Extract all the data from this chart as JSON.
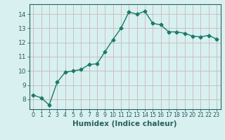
{
  "x": [
    0,
    1,
    2,
    3,
    4,
    5,
    6,
    7,
    8,
    9,
    10,
    11,
    12,
    13,
    14,
    15,
    16,
    17,
    18,
    19,
    20,
    21,
    22,
    23
  ],
  "y": [
    8.3,
    8.1,
    7.6,
    9.2,
    9.9,
    10.0,
    10.1,
    10.45,
    10.5,
    11.35,
    12.2,
    13.0,
    14.15,
    14.0,
    14.2,
    13.35,
    13.25,
    12.75,
    12.75,
    12.65,
    12.45,
    12.4,
    12.5,
    12.25
  ],
  "line_color": "#1a7a6a",
  "marker": "D",
  "markersize": 2.5,
  "linewidth": 1.0,
  "bg_color": "#d8f0f0",
  "grid_color": "#c8b8b8",
  "xlabel": "Humidex (Indice chaleur)",
  "xlim": [
    -0.5,
    23.5
  ],
  "ylim": [
    7.3,
    14.7
  ],
  "yticks": [
    8,
    9,
    10,
    11,
    12,
    13,
    14
  ],
  "xticks": [
    0,
    1,
    2,
    3,
    4,
    5,
    6,
    7,
    8,
    9,
    10,
    11,
    12,
    13,
    14,
    15,
    16,
    17,
    18,
    19,
    20,
    21,
    22,
    23
  ],
  "tick_color": "#2a6060",
  "xlabel_fontsize": 7.5,
  "ytick_fontsize": 6.5,
  "xtick_fontsize": 5.8
}
